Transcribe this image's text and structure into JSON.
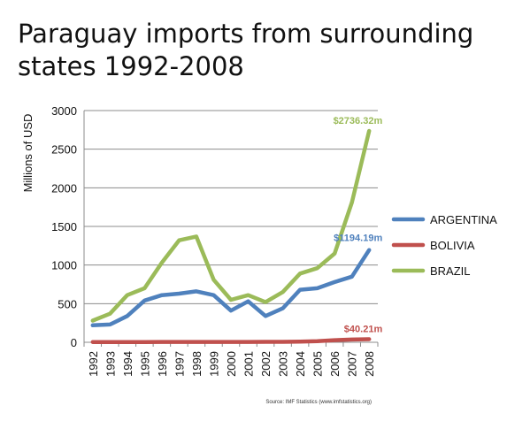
{
  "chart_data": {
    "type": "line",
    "title": "Paraguay imports from surrounding states 1992-2008",
    "ylabel": "Millions of USD",
    "xlabel": "",
    "x": [
      "1992",
      "1993",
      "1994",
      "1995",
      "1996",
      "1997",
      "1998",
      "1999",
      "2000",
      "2001",
      "2002",
      "2003",
      "2004",
      "2005",
      "2006",
      "2007",
      "2008"
    ],
    "ylim": [
      0,
      3000
    ],
    "yticks": [
      "0",
      "500",
      "1000",
      "1500",
      "2000",
      "2500",
      "3000"
    ],
    "grid": "horizontal",
    "legend_position": "right",
    "series": [
      {
        "name": "ARGENTINA",
        "color": "#4f81bd",
        "values": [
          220,
          230,
          340,
          540,
          610,
          630,
          660,
          610,
          410,
          530,
          340,
          440,
          680,
          700,
          780,
          850,
          1194.19
        ],
        "end_label": "$1194.19m"
      },
      {
        "name": "BOLIVIA",
        "color": "#c0504d",
        "values": [
          3,
          3,
          3,
          4,
          5,
          5,
          5,
          5,
          5,
          5,
          6,
          6,
          8,
          15,
          28,
          35,
          40.21
        ],
        "end_label": "$40.21m"
      },
      {
        "name": "BRAZIL",
        "color": "#9bbb59",
        "values": [
          280,
          370,
          610,
          700,
          1030,
          1320,
          1370,
          810,
          550,
          610,
          520,
          650,
          890,
          960,
          1150,
          1810,
          2736.32
        ],
        "end_label": "$2736.32m"
      }
    ],
    "source": "Source: IMF Statistics (www.imfstatistics.org)"
  }
}
